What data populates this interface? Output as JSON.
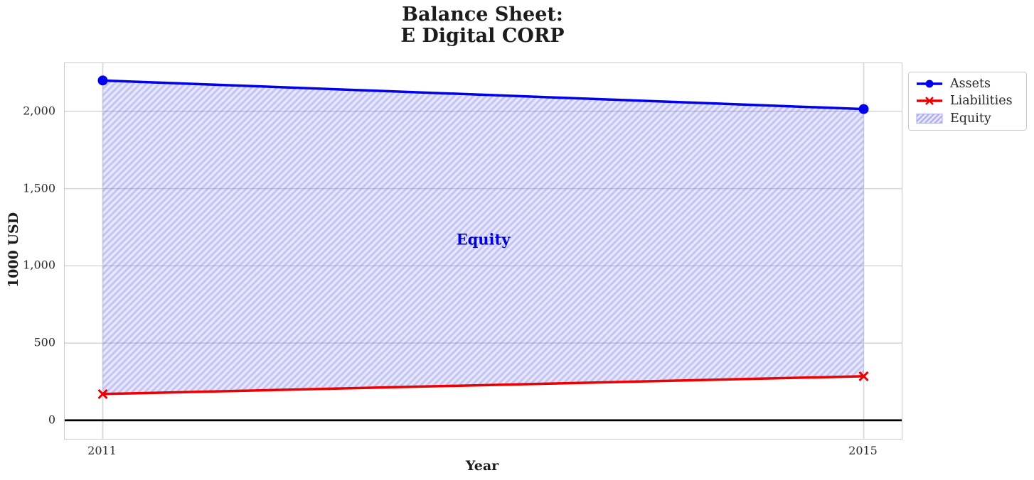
{
  "chart_data": {
    "type": "line",
    "title": "Balance Sheet:\nE Digital CORP",
    "title_lines": [
      "Balance Sheet:",
      "E Digital CORP"
    ],
    "xlabel": "Year",
    "ylabel": "1000 USD",
    "x": [
      2011,
      2015
    ],
    "series": [
      {
        "name": "Assets",
        "values": [
          2200,
          2015
        ],
        "color": "#0000ee",
        "marker": "circle"
      },
      {
        "name": "Liabilities",
        "values": [
          170,
          285
        ],
        "color": "#ee0000",
        "marker": "x"
      }
    ],
    "area": {
      "label": "Equity",
      "between": [
        "Assets",
        "Liabilities"
      ],
      "fill": "rgba(80,80,230,0.13)",
      "hatch_color": "rgba(80,80,220,0.24)",
      "edge_color": "#b5b5e8",
      "annotation": {
        "text": "Equity",
        "x": 2013.0,
        "y": 1170,
        "color": "#0000dd"
      }
    },
    "xlim": [
      2010.8,
      2015.2
    ],
    "ylim": [
      -120,
      2312
    ],
    "xticks": [
      {
        "value": 2011,
        "label": "2011"
      },
      {
        "value": 2015,
        "label": "2015"
      }
    ],
    "yticks": [
      {
        "value": 0,
        "label": "0"
      },
      {
        "value": 500,
        "label": "500"
      },
      {
        "value": 1000,
        "label": "1,000"
      },
      {
        "value": 1500,
        "label": "1,500"
      },
      {
        "value": 2000,
        "label": "2,000"
      }
    ],
    "zero_line": true,
    "grid": true,
    "grid_color": "#d6d6d6",
    "legend": {
      "position": "outside-top-right",
      "entries": [
        "Assets",
        "Liabilities",
        "Equity"
      ]
    }
  }
}
